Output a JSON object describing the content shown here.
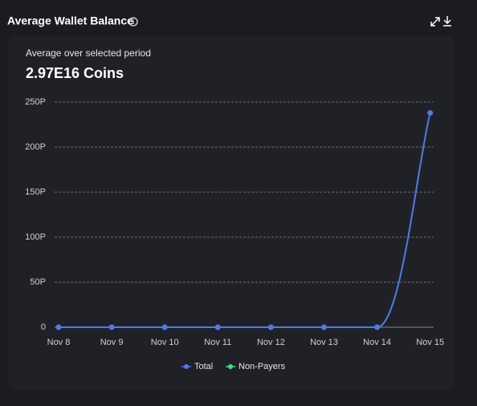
{
  "chart_data": {
    "type": "line",
    "title": "Average Wallet Balance",
    "subtitle": "Average over selected period",
    "headline": "2.97E16 Coins",
    "categories": [
      "Nov 8",
      "Nov 9",
      "Nov 10",
      "Nov 11",
      "Nov 12",
      "Nov 13",
      "Nov 14",
      "Nov 15"
    ],
    "series": [
      {
        "name": "Total",
        "color": "#4f7be8",
        "values": [
          0,
          0,
          0,
          0,
          0,
          0,
          0,
          238
        ]
      },
      {
        "name": "Non-Payers",
        "color": "#4ade80",
        "values": [
          null,
          null,
          null,
          null,
          null,
          null,
          null,
          null
        ]
      }
    ],
    "ylim": [
      0,
      250
    ],
    "yticks": [
      0,
      {
        "value": 50,
        "label": "50P"
      },
      {
        "value": 100,
        "label": "100P"
      },
      {
        "value": 150,
        "label": "150P"
      },
      {
        "value": 200,
        "label": "200P"
      },
      {
        "value": 250,
        "label": "250P"
      }
    ],
    "grid": true
  }
}
